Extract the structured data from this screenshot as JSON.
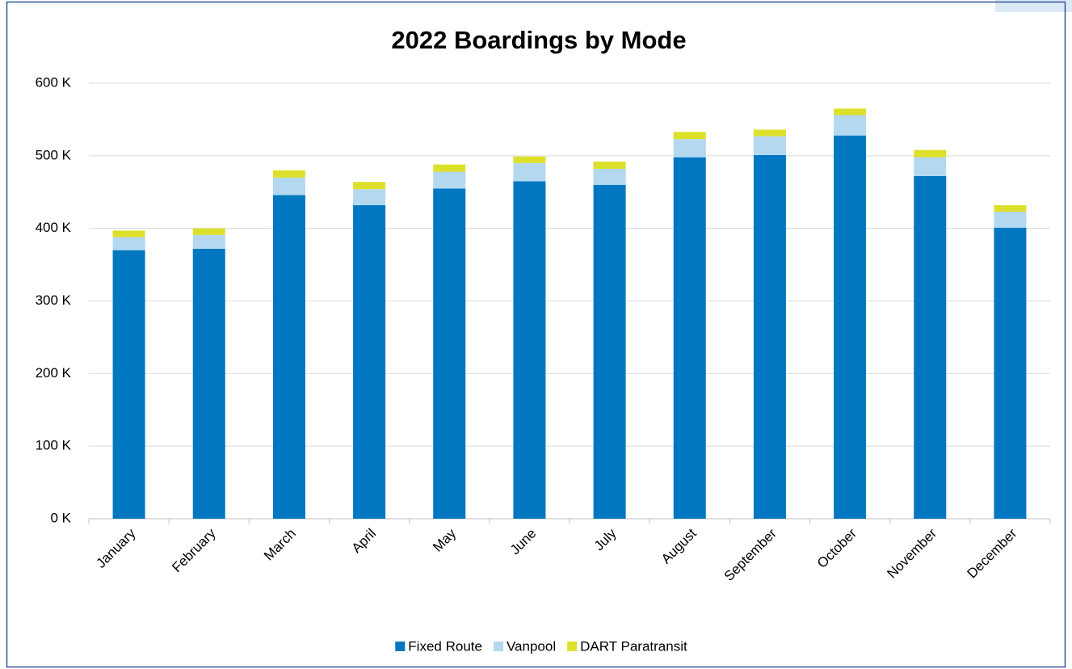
{
  "chart_data": {
    "type": "stacked_bar",
    "title": "2022 Boardings by Mode",
    "categories": [
      "January",
      "February",
      "March",
      "April",
      "May",
      "June",
      "July",
      "August",
      "September",
      "October",
      "November",
      "December"
    ],
    "series": [
      {
        "name": "Fixed Route",
        "color": "#0077c0",
        "values": [
          370000,
          372000,
          446000,
          432000,
          455000,
          465000,
          460000,
          498000,
          501000,
          528000,
          472000,
          401000
        ]
      },
      {
        "name": "Vanpool",
        "color": "#b4d8f0",
        "values": [
          18000,
          19000,
          24000,
          22000,
          23000,
          25000,
          22000,
          25000,
          26000,
          28000,
          26000,
          22000
        ]
      },
      {
        "name": "DART Paratransit",
        "color": "#dde02a",
        "values": [
          9000,
          9000,
          10000,
          10000,
          10000,
          9000,
          10000,
          10000,
          9000,
          9000,
          10000,
          9000
        ]
      }
    ],
    "ylim": [
      0,
      600000
    ],
    "yticks": [
      {
        "value": 0,
        "label": "0 K"
      },
      {
        "value": 100000,
        "label": "100 K"
      },
      {
        "value": 200000,
        "label": "200 K"
      },
      {
        "value": 300000,
        "label": "300 K"
      },
      {
        "value": 400000,
        "label": "400 K"
      },
      {
        "value": 500000,
        "label": "500 K"
      },
      {
        "value": 600000,
        "label": "600 K"
      }
    ],
    "grid": true,
    "legend": "bottom"
  }
}
